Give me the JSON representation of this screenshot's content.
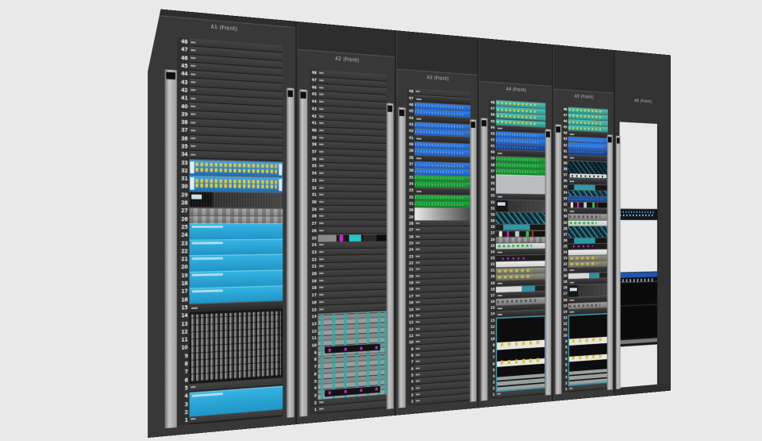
{
  "scene": {
    "description": "3D front view of data center rack row",
    "background_color": "#e9e9e9",
    "u_count": 48
  },
  "palette": {
    "rack_frame": "#383838",
    "rack_interior": "#2a2a2a",
    "rail_strip": "#c4c4c4",
    "cyan_box": "#29a9da",
    "switch_blue": "#2b86c8",
    "port_yellow": "#e8c832",
    "device_blue": "#2470dd",
    "device_green": "#1da23a",
    "patch_teal": "#3ab4aa",
    "chassis_teal": "#3d93a5",
    "magenta": "#cc22cc"
  },
  "racks": [
    {
      "label": "A1 (Front)",
      "u_count": 48,
      "units": [
        {
          "u": 33,
          "size": 2,
          "type": "switch-ports-yellow",
          "name": "ethernet switch with yellow ports"
        },
        {
          "u": 31,
          "size": 2,
          "type": "switch-ports-yellow",
          "name": "ethernet switch with yellow ports"
        },
        {
          "u": 29,
          "size": 2,
          "type": "server-display",
          "name": "server with front display"
        },
        {
          "u": 27,
          "size": 1,
          "type": "server-gray",
          "name": "1U gray server"
        },
        {
          "u": 26,
          "size": 1,
          "type": "server-gray",
          "name": "1U gray server"
        },
        {
          "u": 25,
          "size": 2,
          "type": "blue-box",
          "name": "cyan 2U appliance"
        },
        {
          "u": 23,
          "size": 2,
          "type": "blue-box",
          "name": "cyan 2U appliance"
        },
        {
          "u": 21,
          "size": 2,
          "type": "blue-box",
          "name": "cyan 2U appliance"
        },
        {
          "u": 19,
          "size": 2,
          "type": "blue-box",
          "name": "cyan 2U appliance"
        },
        {
          "u": 17,
          "size": 2,
          "type": "blue-box",
          "name": "cyan 2U appliance"
        },
        {
          "u": 15,
          "size": 1,
          "type": "slim-device",
          "name": "1U device"
        },
        {
          "u": 14,
          "size": 9,
          "type": "dense-patch",
          "name": "high-density patch frame"
        },
        {
          "u": 4,
          "size": 3,
          "type": "blue-box",
          "name": "cyan 3U appliance"
        }
      ]
    },
    {
      "label": "A2 (Front)",
      "u_count": 48,
      "units": [
        {
          "u": 25,
          "size": 1,
          "type": "av-device",
          "name": "media device with magenta and cyan panels"
        },
        {
          "u": 14,
          "size": 6,
          "type": "blade-chassis",
          "name": "blade server chassis"
        },
        {
          "u": 8,
          "size": 6,
          "type": "blade-chassis",
          "name": "blade server chassis"
        }
      ]
    },
    {
      "label": "A3 (Front)",
      "u_count": 48,
      "units": [
        {
          "u": 47,
          "size": 1,
          "type": "slim-device",
          "name": "1U device"
        },
        {
          "u": 46,
          "size": 1,
          "type": "device-blue",
          "name": "blue 1U switch"
        },
        {
          "u": 45,
          "size": 1,
          "type": "device-blue",
          "name": "blue 1U switch"
        },
        {
          "u": 44,
          "size": 1,
          "type": "slim-device",
          "name": "1U device"
        },
        {
          "u": 43,
          "size": 1,
          "type": "device-blue",
          "name": "blue 1U switch"
        },
        {
          "u": 42,
          "size": 1,
          "type": "device-blue",
          "name": "blue 1U switch"
        },
        {
          "u": 41,
          "size": 1,
          "type": "slim-device",
          "name": "1U device"
        },
        {
          "u": 40,
          "size": 1,
          "type": "device-blue",
          "name": "blue 1U switch"
        },
        {
          "u": 39,
          "size": 1,
          "type": "device-blue",
          "name": "blue 1U switch"
        },
        {
          "u": 38,
          "size": 1,
          "type": "slim-device",
          "name": "1U device"
        },
        {
          "u": 37,
          "size": 1,
          "type": "device-blue",
          "name": "blue 1U switch"
        },
        {
          "u": 36,
          "size": 1,
          "type": "device-blue",
          "name": "blue 1U switch"
        },
        {
          "u": 35,
          "size": 1,
          "type": "device-green",
          "name": "green 1U switch"
        },
        {
          "u": 34,
          "size": 1,
          "type": "device-green",
          "name": "green 1U switch"
        },
        {
          "u": 33,
          "size": 1,
          "type": "slim-device",
          "name": "1U device"
        },
        {
          "u": 32,
          "size": 1,
          "type": "device-green",
          "name": "green 1U switch"
        },
        {
          "u": 31,
          "size": 1,
          "type": "device-green",
          "name": "green 1U switch"
        },
        {
          "u": 30,
          "size": 2,
          "type": "silver-device",
          "name": "silver 2U appliance"
        }
      ]
    },
    {
      "label": "A4 (Front)",
      "u_count": 48,
      "units": [
        {
          "u": 48,
          "size": 1,
          "type": "patch-teal",
          "name": "teal patch panel"
        },
        {
          "u": 47,
          "size": 1,
          "type": "patch-teal",
          "name": "teal patch panel"
        },
        {
          "u": 46,
          "size": 1,
          "type": "patch-teal",
          "name": "teal patch panel"
        },
        {
          "u": 45,
          "size": 1,
          "type": "patch-teal",
          "name": "teal patch panel"
        },
        {
          "u": 44,
          "size": 1,
          "type": "slim-device",
          "name": "1U device"
        },
        {
          "u": 43,
          "size": 1,
          "type": "device-blue",
          "name": "blue 1U switch"
        },
        {
          "u": 42,
          "size": 1,
          "type": "device-blue",
          "name": "blue 1U switch"
        },
        {
          "u": 41,
          "size": 1,
          "type": "device-blue-dark",
          "name": "dark blue 1U switch"
        },
        {
          "u": 40,
          "size": 1,
          "type": "slim-device",
          "name": "1U device"
        },
        {
          "u": 39,
          "size": 1,
          "type": "device-green",
          "name": "green 1U switch"
        },
        {
          "u": 38,
          "size": 1,
          "type": "device-green",
          "name": "green 1U switch"
        },
        {
          "u": 37,
          "size": 1,
          "type": "device-green",
          "name": "green 1U switch"
        },
        {
          "u": 36,
          "size": 3,
          "type": "gray-box",
          "name": "gray 3U unit"
        },
        {
          "u": 33,
          "size": 1,
          "type": "slim-device",
          "name": "1U device"
        },
        {
          "u": 32,
          "size": 2,
          "type": "server-display",
          "name": "2U server"
        },
        {
          "u": 30,
          "size": 2,
          "type": "teal-weave",
          "name": "2U woven-front appliance"
        },
        {
          "u": 28,
          "size": 1,
          "type": "device-teal-dark",
          "name": "teal 1U device"
        },
        {
          "u": 27,
          "size": 1,
          "type": "mixed-device",
          "name": "1U device with colored modules"
        },
        {
          "u": 26,
          "size": 1,
          "type": "server-gray",
          "name": "1U gray server"
        },
        {
          "u": 25,
          "size": 1,
          "type": "device-white-green",
          "name": "white 1U device with green ports"
        },
        {
          "u": 24,
          "size": 1,
          "type": "slim-device",
          "name": "1U device"
        },
        {
          "u": 23,
          "size": 1,
          "type": "device-magenta",
          "name": "1U device with magenta ports"
        },
        {
          "u": 22,
          "size": 1,
          "type": "device-white",
          "name": "white 1U device"
        },
        {
          "u": 21,
          "size": 1,
          "type": "device-olive",
          "name": "1U device with olive modules"
        },
        {
          "u": 20,
          "size": 1,
          "type": "device-olive",
          "name": "1U device with olive modules"
        },
        {
          "u": 19,
          "size": 1,
          "type": "slim-device",
          "name": "1U device"
        },
        {
          "u": 18,
          "size": 1,
          "type": "device-white-teal",
          "name": "white and teal 1U device"
        },
        {
          "u": 17,
          "size": 1,
          "type": "slim-device",
          "name": "1U device"
        },
        {
          "u": 16,
          "size": 1,
          "type": "device-gray-ports",
          "name": "gray 1U device with ports"
        },
        {
          "u": 15,
          "size": 1,
          "type": "slim-device",
          "name": "1U device"
        },
        {
          "u": 14,
          "size": 1,
          "type": "slim-device",
          "name": "1U device"
        },
        {
          "u": 13,
          "size": 12,
          "type": "router-chassis",
          "name": "large router chassis with teal frame"
        }
      ]
    },
    {
      "label": "A5 (Front)",
      "u_count": 48,
      "units": [
        {
          "u": 48,
          "size": 1,
          "type": "patch-teal",
          "name": "teal patch panel"
        },
        {
          "u": 47,
          "size": 1,
          "type": "patch-teal",
          "name": "teal patch panel"
        },
        {
          "u": 46,
          "size": 1,
          "type": "patch-teal",
          "name": "teal patch panel"
        },
        {
          "u": 45,
          "size": 1,
          "type": "patch-teal",
          "name": "teal patch panel"
        },
        {
          "u": 44,
          "size": 1,
          "type": "slim-device",
          "name": "1U device"
        },
        {
          "u": 43,
          "size": 1,
          "type": "device-blue",
          "name": "blue 1U switch"
        },
        {
          "u": 42,
          "size": 1,
          "type": "device-blue",
          "name": "blue 1U switch"
        },
        {
          "u": 41,
          "size": 1,
          "type": "device-blue-dark",
          "name": "dark blue 1U switch"
        },
        {
          "u": 40,
          "size": 1,
          "type": "slim-device",
          "name": "1U device"
        },
        {
          "u": 39,
          "size": 3,
          "type": "weave-dark",
          "name": "3U woven-front appliance"
        },
        {
          "u": 36,
          "size": 1,
          "type": "slim-device",
          "name": "1U device"
        },
        {
          "u": 35,
          "size": 1,
          "type": "device-teal-dark",
          "name": "teal 1U device"
        },
        {
          "u": 34,
          "size": 1,
          "type": "teal-weave",
          "name": "woven-front 1U appliance"
        },
        {
          "u": 33,
          "size": 1,
          "type": "device-blue-dark",
          "name": "dark blue 1U switch"
        },
        {
          "u": 32,
          "size": 1,
          "type": "mixed-device",
          "name": "1U device with colored modules"
        },
        {
          "u": 31,
          "size": 1,
          "type": "slim-device",
          "name": "1U device"
        },
        {
          "u": 30,
          "size": 1,
          "type": "device-gray-ports",
          "name": "gray 1U device with ports"
        },
        {
          "u": 29,
          "size": 1,
          "type": "device-white-green",
          "name": "white 1U device with green ports"
        },
        {
          "u": 28,
          "size": 2,
          "type": "teal-weave",
          "name": "2U woven-front appliance"
        },
        {
          "u": 26,
          "size": 1,
          "type": "device-teal-dark",
          "name": "teal 1U device"
        },
        {
          "u": 25,
          "size": 1,
          "type": "device-magenta",
          "name": "1U device with magenta ports"
        },
        {
          "u": 24,
          "size": 1,
          "type": "device-white",
          "name": "white 1U device"
        },
        {
          "u": 23,
          "size": 1,
          "type": "device-olive",
          "name": "1U device with olive modules"
        },
        {
          "u": 22,
          "size": 1,
          "type": "device-olive",
          "name": "1U device with olive modules"
        },
        {
          "u": 21,
          "size": 1,
          "type": "slim-device",
          "name": "1U device"
        },
        {
          "u": 20,
          "size": 1,
          "type": "device-white-teal",
          "name": "white and teal 1U device"
        },
        {
          "u": 19,
          "size": 1,
          "type": "slim-device",
          "name": "1U device"
        },
        {
          "u": 18,
          "size": 2,
          "type": "server-display",
          "name": "2U server"
        },
        {
          "u": 16,
          "size": 1,
          "type": "slim-device",
          "name": "1U device"
        },
        {
          "u": 15,
          "size": 1,
          "type": "device-gray-ports",
          "name": "gray 1U device with ports"
        },
        {
          "u": 14,
          "size": 1,
          "type": "slim-device",
          "name": "1U device"
        },
        {
          "u": 13,
          "size": 12,
          "type": "router-chassis",
          "name": "large router chassis with teal frame"
        }
      ]
    },
    {
      "label": "A6 (Front)",
      "u_count": 48,
      "open_frame": true,
      "units": [
        {
          "u": 31,
          "size": 2,
          "type": "device-dots-blue",
          "name": "2U switch with lit blue ports"
        },
        {
          "u": 20,
          "size": 13,
          "type": "storage-black",
          "name": "black storage tower with blue top"
        }
      ]
    }
  ]
}
